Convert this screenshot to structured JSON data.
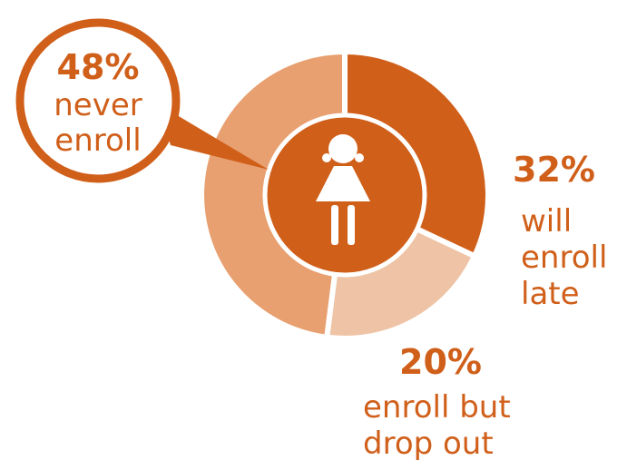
{
  "chart_data": {
    "type": "pie",
    "categories": [
      "will enroll late",
      "enroll but drop out",
      "never enroll"
    ],
    "values": [
      32,
      20,
      48
    ],
    "value_labels": [
      "32%",
      "20%",
      "48%"
    ],
    "label_lines": [
      [
        "will",
        "enroll",
        "late"
      ],
      [
        "enroll but",
        "drop out"
      ],
      [
        "never",
        "enroll"
      ]
    ],
    "colors": [
      "#d05f1a",
      "#efc4a6",
      "#e8a070"
    ],
    "accent": "#d05f1a",
    "center_icon": "girl-icon",
    "callout_slice": 2
  }
}
